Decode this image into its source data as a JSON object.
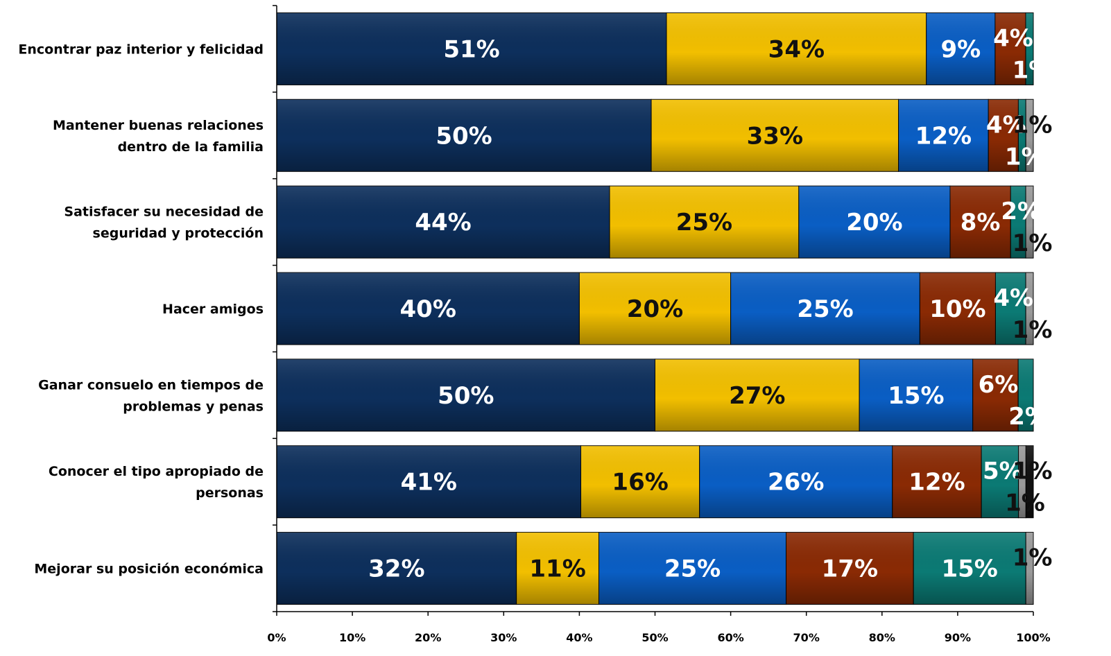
{
  "chart_data": {
    "type": "bar",
    "orientation": "horizontal",
    "stacked": true,
    "normalized": true,
    "categories": [
      "Encontrar paz interior y felicidad",
      "Mantener buenas relaciones dentro de la familia",
      "Satisfacer su necesidad de seguridad y protección",
      "Hacer amigos",
      "Ganar consuelo en tiempos de problemas y penas",
      "Conocer el tipo apropiado de personas",
      "Mejorar su posición económica"
    ],
    "category_lines": [
      [
        "Encontrar paz interior y felicidad"
      ],
      [
        "Mantener buenas relaciones",
        "dentro de la familia"
      ],
      [
        "Satisfacer su necesidad de",
        "seguridad y protección"
      ],
      [
        "Hacer amigos"
      ],
      [
        "Ganar consuelo en tiempos de",
        "problemas y penas"
      ],
      [
        "Conocer el tipo apropiado de",
        "personas"
      ],
      [
        "Mejorar su posición económica"
      ]
    ],
    "series": [
      {
        "values": [
          51,
          50,
          44,
          40,
          50,
          41,
          32
        ],
        "color": "#0d2f5c",
        "label_color": "#ffffff"
      },
      {
        "values": [
          34,
          33,
          25,
          20,
          27,
          16,
          11
        ],
        "color": "#f2bf00",
        "label_color": "#111111"
      },
      {
        "values": [
          9,
          12,
          20,
          25,
          15,
          26,
          25
        ],
        "color": "#0a5ec4",
        "label_color": "#ffffff"
      },
      {
        "values": [
          4,
          4,
          8,
          10,
          6,
          12,
          17
        ],
        "color": "#8a2a04",
        "label_color": "#ffffff"
      },
      {
        "values": [
          1,
          1,
          2,
          4,
          2,
          5,
          15
        ],
        "color": "#0b7a74",
        "label_color": "#ffffff"
      },
      {
        "values": [
          0,
          1,
          1,
          1,
          0,
          1,
          1
        ],
        "color": "#9a9a9a",
        "label_color": "#111111"
      },
      {
        "values": [
          0,
          0,
          0,
          0,
          0,
          1,
          0
        ],
        "color": "#111111",
        "label_color": "#111111"
      }
    ],
    "x_ticks": [
      "0%",
      "10%",
      "20%",
      "30%",
      "40%",
      "50%",
      "60%",
      "70%",
      "80%",
      "90%",
      "100%"
    ],
    "xlim": [
      0,
      100
    ],
    "title": "",
    "xlabel": "",
    "ylabel": "",
    "legend": "none",
    "grid": false
  }
}
